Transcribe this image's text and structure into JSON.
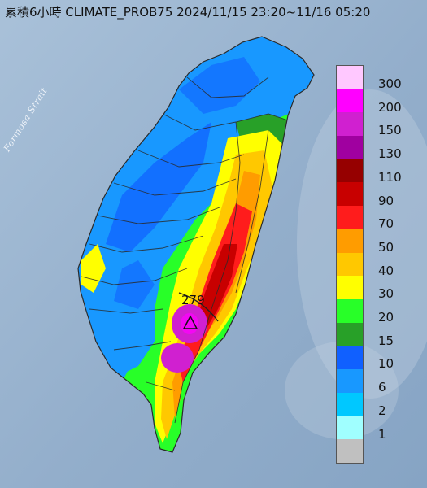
{
  "title": "累積6小時 CLIMATE_PROB75 2024/11/15 23:20~11/16 05:20",
  "strait_label": "Formosa Strait",
  "max_marker": {
    "value": "279",
    "icon": "triangle-marker-icon"
  },
  "legend": [
    {
      "label": "300",
      "color": "#ffc8ff"
    },
    {
      "label": "200",
      "color": "#ff00ff"
    },
    {
      "label": "150",
      "color": "#d020d0"
    },
    {
      "label": "130",
      "color": "#a000a0"
    },
    {
      "label": "110",
      "color": "#960000"
    },
    {
      "label": "90",
      "color": "#c80000"
    },
    {
      "label": "70",
      "color": "#ff1c1c"
    },
    {
      "label": "50",
      "color": "#ff9c00"
    },
    {
      "label": "40",
      "color": "#ffc800"
    },
    {
      "label": "30",
      "color": "#ffff00"
    },
    {
      "label": "20",
      "color": "#28ff28"
    },
    {
      "label": "15",
      "color": "#28a028"
    },
    {
      "label": "10",
      "color": "#1060ff"
    },
    {
      "label": "6",
      "color": "#1898ff"
    },
    {
      "label": "2",
      "color": "#00c8ff"
    },
    {
      "label": "1",
      "color": "#a0ffff"
    },
    {
      "label": "",
      "color": "#c0c0c0"
    }
  ]
}
